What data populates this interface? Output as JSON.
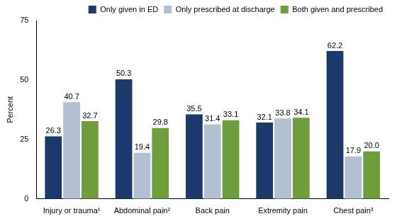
{
  "chart_data": {
    "type": "bar",
    "categories": [
      "Injury or trauma¹",
      "Abdominal pain²",
      "Back pain",
      "Extremity pain",
      "Chest pain³"
    ],
    "series": [
      {
        "name": "Only given in ED",
        "color": "#1b3a6b",
        "values": [
          26.3,
          50.3,
          35.5,
          32.1,
          62.2
        ],
        "value_labels": [
          "26.3",
          "50.3",
          "35.5",
          "32.1",
          "62.2"
        ]
      },
      {
        "name": "Only prescribed at discharge",
        "color": "#b3c0d1",
        "values": [
          40.7,
          19.4,
          31.4,
          33.8,
          17.9
        ],
        "value_labels": [
          "40.7",
          "19.4",
          "31.4",
          "33.8",
          "17.9"
        ]
      },
      {
        "name": "Both given and prescribed",
        "color": "#6e9e3c",
        "values": [
          32.7,
          29.8,
          33.1,
          34.1,
          20.0
        ],
        "value_labels": [
          "32.7",
          "29.8",
          "33.1",
          "34.1",
          "20.0"
        ]
      }
    ],
    "y_label": "Percent",
    "ylim": [
      0,
      75
    ],
    "yticks": [
      0,
      25,
      50,
      75
    ],
    "grid": false,
    "legend": "top",
    "data_labels": true
  }
}
